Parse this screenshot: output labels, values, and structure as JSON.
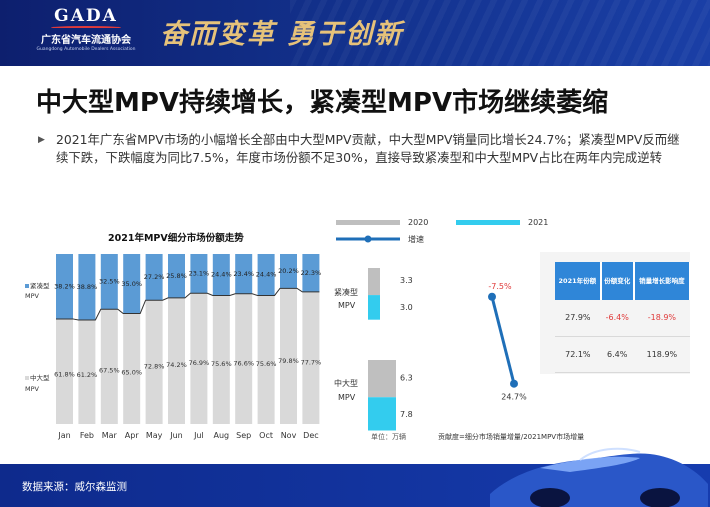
{
  "header": {
    "logo_mark": "GADA",
    "org_name": "广东省汽车流通协会",
    "org_name_en": "Guangdong Automobile Dealers Association",
    "slogan": "奋而变革 勇于创新"
  },
  "title": "中大型MPV持续增长，紧凑型MPV市场继续萎缩",
  "bullet": "2021年广东省MPV市场的小幅增长全部由中大型MPV贡献，中大型MPV销量同比增长24.7%；紧凑型MPV反而继续下跌，下跌幅度为同比7.5%，年度市场份额不足30%，直接导致紧凑型和中大型MPV占比在两年内完成逆转",
  "legend": {
    "y2020": "2020",
    "y2021": "2021",
    "growth": "增速"
  },
  "unit_note": "单位：万辆",
  "contrib_note": "贡献度=细分市场销量增量/2021MPV市场增量",
  "source": "数据来源：威尔森监测",
  "colors": {
    "compact": "#5b9bd5",
    "midlarge": "#d9d9d9",
    "y2020": "#bfbfbf",
    "y2021": "#33ccee",
    "growth_line": "#1f6fb8",
    "negative": "#e03a3a",
    "table_header": "#2f86d8"
  },
  "table": {
    "headers": [
      "2021年份额",
      "份额变化",
      "销量增长影响度"
    ],
    "rows": [
      [
        "27.9%",
        "-6.4%",
        "-18.9%"
      ],
      [
        "72.1%",
        "6.4%",
        "118.9%"
      ]
    ]
  },
  "chart_data": [
    {
      "type": "bar",
      "title": "2021年MPV细分市场份额走势",
      "stacked": true,
      "categories": [
        "Jan",
        "Feb",
        "Mar",
        "Apr",
        "May",
        "Jun",
        "Jul",
        "Aug",
        "Sep",
        "Oct",
        "Nov",
        "Dec"
      ],
      "series": [
        {
          "name": "中大型MPV",
          "values": [
            61.8,
            61.2,
            67.5,
            65.0,
            72.8,
            74.2,
            76.9,
            75.6,
            76.6,
            75.6,
            79.8,
            77.7
          ],
          "labels": [
            "61.8%",
            "61.2%",
            "67.5%",
            "65.0%",
            "72.8%",
            "74.2%",
            "76.9%",
            "75.6%",
            "76.6%",
            "75.6%",
            "79.8%",
            "77.7%"
          ]
        },
        {
          "name": "紧凑型MPV",
          "values": [
            38.2,
            38.8,
            32.5,
            35.0,
            27.2,
            25.8,
            23.1,
            24.4,
            23.4,
            24.4,
            20.2,
            22.3
          ],
          "labels": [
            "38.2%",
            "38.8%",
            "32.5%",
            "35.0%",
            "27.2%",
            "25.8%",
            "23.1%",
            "24.4%",
            "23.4%",
            "24.4%",
            "20.2%",
            "22.3%"
          ]
        }
      ],
      "ylim": [
        0,
        100
      ]
    },
    {
      "type": "bar",
      "orientation": "vertical-stacked-pairs",
      "categories": [
        "紧凑型MPV",
        "中大型MPV"
      ],
      "series": [
        {
          "name": "2020",
          "values": [
            3.3,
            6.3
          ],
          "labels": [
            "3.3",
            "6.3"
          ]
        },
        {
          "name": "2021",
          "values": [
            3.0,
            7.8
          ],
          "labels": [
            "3.0",
            "7.8"
          ]
        }
      ]
    },
    {
      "type": "line",
      "categories": [
        "紧凑型MPV",
        "中大型MPV"
      ],
      "series": [
        {
          "name": "增速",
          "values": [
            -7.5,
            24.7
          ],
          "labels": [
            "-7.5%",
            "24.7%"
          ]
        }
      ]
    }
  ]
}
